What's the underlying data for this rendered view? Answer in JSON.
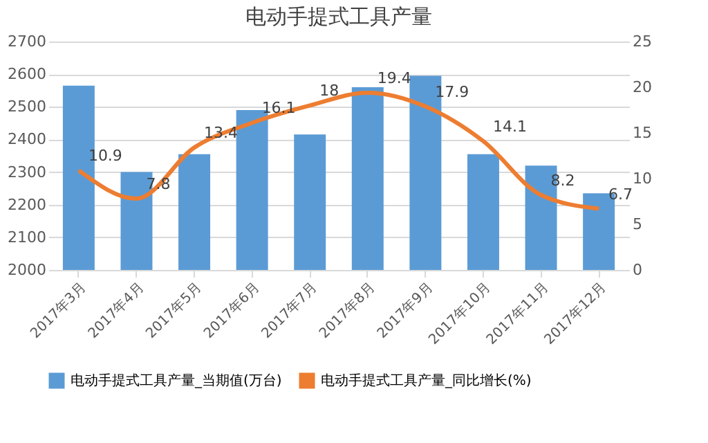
{
  "chart_data": {
    "type": "bar",
    "title": "电动手提式工具产量",
    "categories": [
      "2017年3月",
      "2017年4月",
      "2017年5月",
      "2017年6月",
      "2017年7月",
      "2017年8月",
      "2017年9月",
      "2017年10月",
      "2017年11月",
      "2017年12月"
    ],
    "series": [
      {
        "name": "电动手提式工具产量_当期值(万台)",
        "color": "#5b9bd5",
        "values": [
          2565,
          2300,
          2355,
          2490,
          2415,
          2560,
          2595,
          2355,
          2320,
          2235
        ]
      },
      {
        "name": "电动手提式工具产量_同比增长(%)",
        "color": "#ed7d31",
        "type": "line",
        "axis": "y2",
        "data_labels": true,
        "values": [
          10.9,
          7.8,
          13.4,
          16.1,
          18,
          19.4,
          17.9,
          14.1,
          8.2,
          6.7
        ]
      }
    ],
    "ylim": [
      2000,
      2700
    ],
    "yticks": [
      2000,
      2100,
      2200,
      2300,
      2400,
      2500,
      2600,
      2700
    ],
    "y2lim": [
      0,
      25
    ],
    "y2ticks": [
      0,
      5,
      10,
      15,
      20,
      25
    ],
    "grid": "y",
    "legend": "bottom",
    "marker": "none",
    "line_style": "solid"
  }
}
